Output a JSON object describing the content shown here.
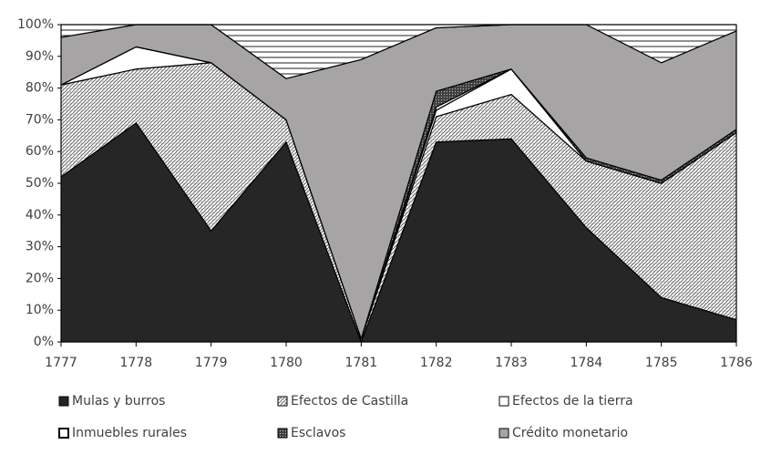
{
  "chart_data": {
    "type": "stacked-area-100",
    "x": [
      1777,
      1778,
      1779,
      1780,
      1781,
      1782,
      1783,
      1784,
      1785,
      1786
    ],
    "xlim": [
      1777,
      1786
    ],
    "xticks": [
      1777,
      1778,
      1779,
      1780,
      1781,
      1782,
      1783,
      1784,
      1785,
      1786
    ],
    "ylim": [
      0,
      100
    ],
    "yticks": [
      {
        "value": 0,
        "label": "0%"
      },
      {
        "value": 10,
        "label": "10%"
      },
      {
        "value": 20,
        "label": "20%"
      },
      {
        "value": 30,
        "label": "30%"
      },
      {
        "value": 40,
        "label": "40%"
      },
      {
        "value": 50,
        "label": "50%"
      },
      {
        "value": 60,
        "label": "60%"
      },
      {
        "value": 70,
        "label": "70%"
      },
      {
        "value": 80,
        "label": "80%"
      },
      {
        "value": 90,
        "label": "90%"
      },
      {
        "value": 100,
        "label": "100%"
      }
    ],
    "series": [
      {
        "name": "Mulas y burros",
        "color": "#262626",
        "pattern": "solid",
        "values": [
          52,
          69,
          35,
          63,
          0,
          63,
          64,
          36,
          14,
          7
        ]
      },
      {
        "name": "Efectos de Castilla",
        "color": "#ffffff",
        "pattern": "hatch",
        "values": [
          29,
          17,
          53,
          7,
          1,
          8,
          14,
          21,
          36,
          59
        ]
      },
      {
        "name": "Efectos de la tierra",
        "color": "#ffffff",
        "pattern": "solid",
        "values": [
          0,
          7,
          0,
          0,
          0,
          2,
          8,
          0,
          0,
          0
        ]
      },
      {
        "name": "Inmuebles rurales",
        "color": "#ffffff",
        "pattern": "solid",
        "values": [
          0,
          0,
          0,
          0,
          0,
          1,
          0,
          0,
          0,
          0
        ]
      },
      {
        "name": "Esclavos",
        "color": "#404040",
        "pattern": "dots",
        "values": [
          0,
          0,
          0,
          0,
          0,
          5,
          0,
          1,
          1,
          1
        ]
      },
      {
        "name": "Crédito monetario",
        "color": "#a6a4a4",
        "pattern": "solid",
        "values": [
          15,
          7,
          12,
          13,
          88,
          20,
          14,
          42,
          37,
          31
        ]
      },
      {
        "color": "#ffffff",
        "pattern": "hlines",
        "values": [
          4,
          0,
          0,
          17,
          11,
          1,
          0,
          0,
          12,
          2
        ]
      }
    ]
  }
}
